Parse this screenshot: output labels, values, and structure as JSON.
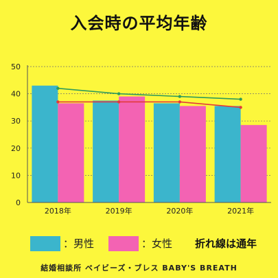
{
  "title": "入会時の平均年齢",
  "footer": "結婚相談所 ベイビーズ・ブレス BABY'S BREATH",
  "legend": {
    "male_label": "：男性",
    "female_label": "：女性",
    "line_note": "折れ線は通年"
  },
  "colors": {
    "background": "#FCF73C",
    "male": "#3BB5CC",
    "female": "#F363B3",
    "male_line": "#2E9B5A",
    "female_line": "#E23A3A"
  },
  "chart_data": {
    "type": "bar",
    "categories": [
      "2018年",
      "2019年",
      "2020年",
      "2021年"
    ],
    "series": [
      {
        "name": "男性",
        "values": [
          43,
          37.5,
          36.5,
          35.5
        ]
      },
      {
        "name": "女性",
        "values": [
          36.5,
          39,
          35.5,
          28.5
        ]
      }
    ],
    "lines": [
      {
        "name": "男性",
        "values": [
          42,
          40,
          39,
          38
        ]
      },
      {
        "name": "女性",
        "values": [
          37,
          37,
          37,
          35
        ]
      }
    ],
    "yticks": [
      0,
      10,
      20,
      30,
      40,
      50
    ],
    "ylim": [
      0,
      50
    ],
    "grid": true
  }
}
